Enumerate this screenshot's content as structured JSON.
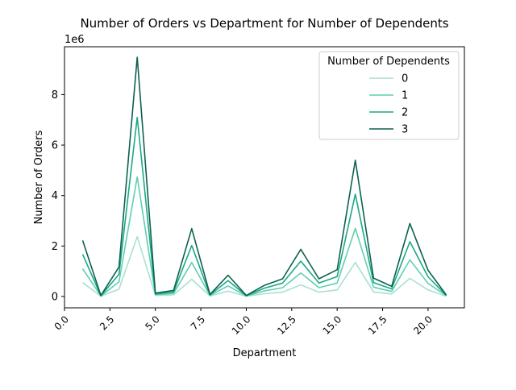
{
  "chart_data": {
    "type": "line",
    "title": "Number of Orders vs Department for Number of Dependents",
    "xlabel": "Department",
    "ylabel": "Number of Orders",
    "y_offset_label": "1e6",
    "xlim": [
      0,
      22
    ],
    "ylim": [
      -0.45,
      9.9
    ],
    "x_ticks": [
      0.0,
      2.5,
      5.0,
      7.5,
      10.0,
      12.5,
      15.0,
      17.5,
      20.0
    ],
    "x_tick_labels": [
      "0.0",
      "2.5",
      "5.0",
      "7.5",
      "10.0",
      "12.5",
      "15.0",
      "17.5",
      "20.0"
    ],
    "y_ticks": [
      0,
      2,
      4,
      6,
      8
    ],
    "y_tick_labels": [
      "0",
      "2",
      "4",
      "6",
      "8"
    ],
    "x": [
      1,
      2,
      3,
      4,
      5,
      6,
      7,
      8,
      9,
      10,
      11,
      12,
      13,
      14,
      15,
      16,
      17,
      18,
      19,
      20,
      21
    ],
    "series": [
      {
        "name": "0",
        "color": "#a8e1d3",
        "values": [
          0.55,
          0.01,
          0.29,
          2.37,
          0.04,
          0.06,
          0.68,
          0.02,
          0.21,
          0.01,
          0.11,
          0.17,
          0.46,
          0.17,
          0.26,
          1.35,
          0.18,
          0.1,
          0.72,
          0.26,
          0.01
        ]
      },
      {
        "name": "1",
        "color": "#5fcfb0",
        "values": [
          1.1,
          0.02,
          0.58,
          4.74,
          0.07,
          0.12,
          1.35,
          0.04,
          0.42,
          0.02,
          0.22,
          0.35,
          0.93,
          0.35,
          0.53,
          2.7,
          0.37,
          0.2,
          1.45,
          0.52,
          0.03
        ]
      },
      {
        "name": "2",
        "color": "#1aa985",
        "values": [
          1.67,
          0.03,
          0.88,
          7.1,
          0.1,
          0.18,
          2.02,
          0.06,
          0.63,
          0.03,
          0.33,
          0.53,
          1.4,
          0.53,
          0.79,
          4.05,
          0.55,
          0.3,
          2.17,
          0.78,
          0.04
        ]
      },
      {
        "name": "3",
        "color": "#0d6150",
        "values": [
          2.22,
          0.04,
          1.17,
          9.48,
          0.13,
          0.24,
          2.69,
          0.08,
          0.84,
          0.04,
          0.44,
          0.7,
          1.87,
          0.7,
          1.06,
          5.4,
          0.73,
          0.4,
          2.89,
          1.04,
          0.06
        ]
      }
    ],
    "legend": {
      "title": "Number of Dependents",
      "position": "top-right"
    },
    "grid": false
  }
}
